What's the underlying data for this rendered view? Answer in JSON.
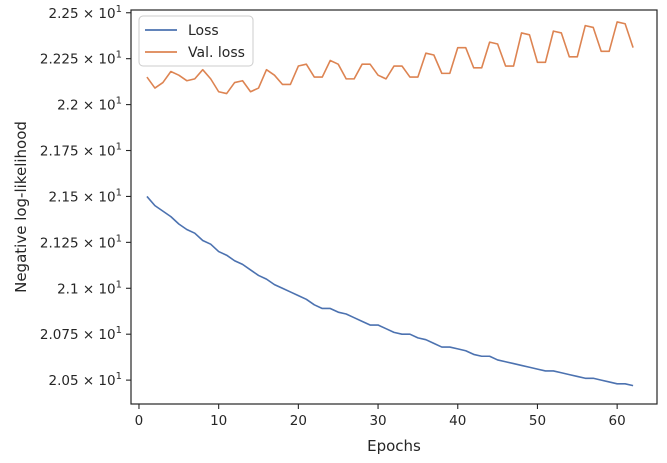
{
  "chart_data": {
    "type": "line",
    "xlabel": "Epochs",
    "ylabel": "Negative log-likelihood",
    "xlim": [
      -1,
      65
    ],
    "ylim": [
      20.37,
      22.515
    ],
    "xticks": [
      0,
      10,
      20,
      30,
      40,
      50,
      60
    ],
    "xtick_labels": [
      "0",
      "10",
      "20",
      "30",
      "40",
      "50",
      "60"
    ],
    "yticks": [
      20.5,
      20.75,
      21.0,
      21.25,
      21.5,
      21.75,
      22.0,
      22.25,
      22.5
    ],
    "ytick_labels": [
      {
        "mantissa": "2.05",
        "exp": "1"
      },
      {
        "mantissa": "2.075",
        "exp": "1"
      },
      {
        "mantissa": "2.1",
        "exp": "1"
      },
      {
        "mantissa": "2.125",
        "exp": "1"
      },
      {
        "mantissa": "2.15",
        "exp": "1"
      },
      {
        "mantissa": "2.175",
        "exp": "1"
      },
      {
        "mantissa": "2.2",
        "exp": "1"
      },
      {
        "mantissa": "2.225",
        "exp": "1"
      },
      {
        "mantissa": "2.25",
        "exp": "1"
      }
    ],
    "grid": false,
    "legend_position": "top-left",
    "x": [
      1,
      2,
      3,
      4,
      5,
      6,
      7,
      8,
      9,
      10,
      11,
      12,
      13,
      14,
      15,
      16,
      17,
      18,
      19,
      20,
      21,
      22,
      23,
      24,
      25,
      26,
      27,
      28,
      29,
      30,
      31,
      32,
      33,
      34,
      35,
      36,
      37,
      38,
      39,
      40,
      41,
      42,
      43,
      44,
      45,
      46,
      47,
      48,
      49,
      50,
      51,
      52,
      53,
      54,
      55,
      56,
      57,
      58,
      59,
      60,
      61,
      62
    ],
    "series": [
      {
        "name": "Loss",
        "color": "#4c72b0",
        "values": [
          21.5,
          21.45,
          21.42,
          21.39,
          21.35,
          21.32,
          21.3,
          21.26,
          21.24,
          21.2,
          21.18,
          21.15,
          21.13,
          21.1,
          21.07,
          21.05,
          21.02,
          21.0,
          20.98,
          20.96,
          20.94,
          20.91,
          20.89,
          20.89,
          20.87,
          20.86,
          20.84,
          20.82,
          20.8,
          20.8,
          20.78,
          20.76,
          20.75,
          20.75,
          20.73,
          20.72,
          20.7,
          20.68,
          20.68,
          20.67,
          20.66,
          20.64,
          20.63,
          20.63,
          20.61,
          20.6,
          20.59,
          20.58,
          20.57,
          20.56,
          20.55,
          20.55,
          20.54,
          20.53,
          20.52,
          20.51,
          20.51,
          20.5,
          20.49,
          20.48,
          20.48,
          20.47
        ]
      },
      {
        "name": "Val. loss",
        "color": "#dd8452",
        "values": [
          22.15,
          22.09,
          22.12,
          22.18,
          22.16,
          22.13,
          22.14,
          22.19,
          22.14,
          22.07,
          22.06,
          22.12,
          22.13,
          22.07,
          22.09,
          22.19,
          22.16,
          22.11,
          22.11,
          22.21,
          22.22,
          22.15,
          22.15,
          22.24,
          22.22,
          22.14,
          22.14,
          22.22,
          22.22,
          22.16,
          22.14,
          22.21,
          22.21,
          22.15,
          22.15,
          22.28,
          22.27,
          22.17,
          22.17,
          22.31,
          22.31,
          22.2,
          22.2,
          22.34,
          22.33,
          22.21,
          22.21,
          22.39,
          22.38,
          22.23,
          22.23,
          22.4,
          22.39,
          22.26,
          22.26,
          22.43,
          22.42,
          22.29,
          22.29,
          22.45,
          22.44,
          22.31
        ]
      }
    ]
  }
}
